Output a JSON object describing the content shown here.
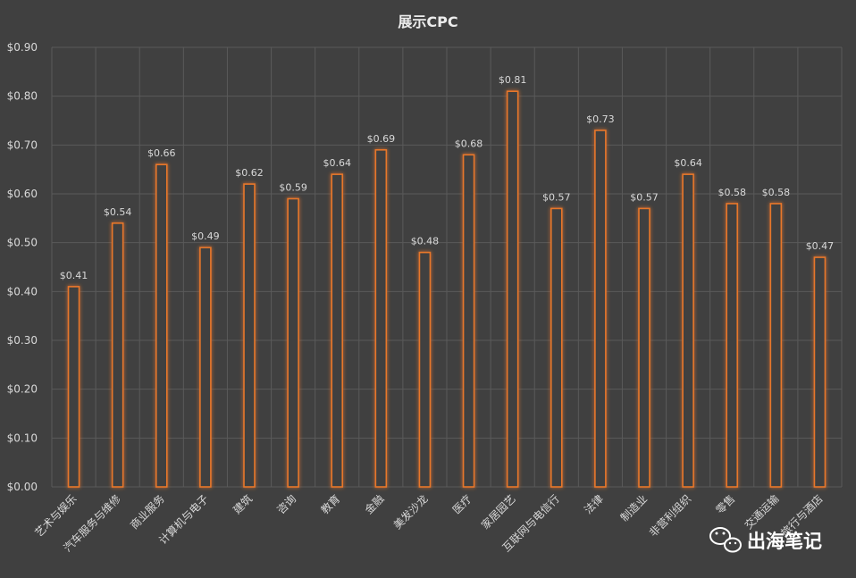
{
  "chart_data": {
    "type": "bar",
    "title": "展示CPC",
    "xlabel": "",
    "ylabel": "",
    "ylim": [
      0,
      0.9
    ],
    "yticks": [
      "$0.00",
      "$0.10",
      "$0.20",
      "$0.30",
      "$0.40",
      "$0.50",
      "$0.60",
      "$0.70",
      "$0.80",
      "$0.90"
    ],
    "grid": true,
    "categories": [
      "艺术与娱乐",
      "汽车服务与维修",
      "商业服务",
      "计算机与电子",
      "建筑",
      "咨询",
      "教育",
      "金融",
      "美发沙龙",
      "医疗",
      "家居园艺",
      "互联网与电信行",
      "法律",
      "制造业",
      "非营利组织",
      "零售",
      "交通运输",
      "旅行与酒店"
    ],
    "values": [
      0.41,
      0.54,
      0.66,
      0.49,
      0.62,
      0.59,
      0.64,
      0.69,
      0.48,
      0.68,
      0.81,
      0.57,
      0.73,
      0.57,
      0.64,
      0.58,
      0.58,
      0.47
    ],
    "data_labels": [
      "$0.41",
      "$0.54",
      "$0.66",
      "$0.49",
      "$0.62",
      "$0.59",
      "$0.64",
      "$0.69",
      "$0.48",
      "$0.68",
      "$0.81",
      "$0.57",
      "$0.73",
      "$0.57",
      "$0.64",
      "$0.58",
      "$0.58",
      "$0.47"
    ]
  },
  "colors": {
    "background": "#404040",
    "grid": "#5a5a5a",
    "bar_stroke": "#e8772b",
    "bar_fill": "#404040",
    "text": "#d9d9d9",
    "title": "#ececec"
  },
  "watermark": {
    "text": "出海笔记",
    "icon": "wechat-icon"
  }
}
